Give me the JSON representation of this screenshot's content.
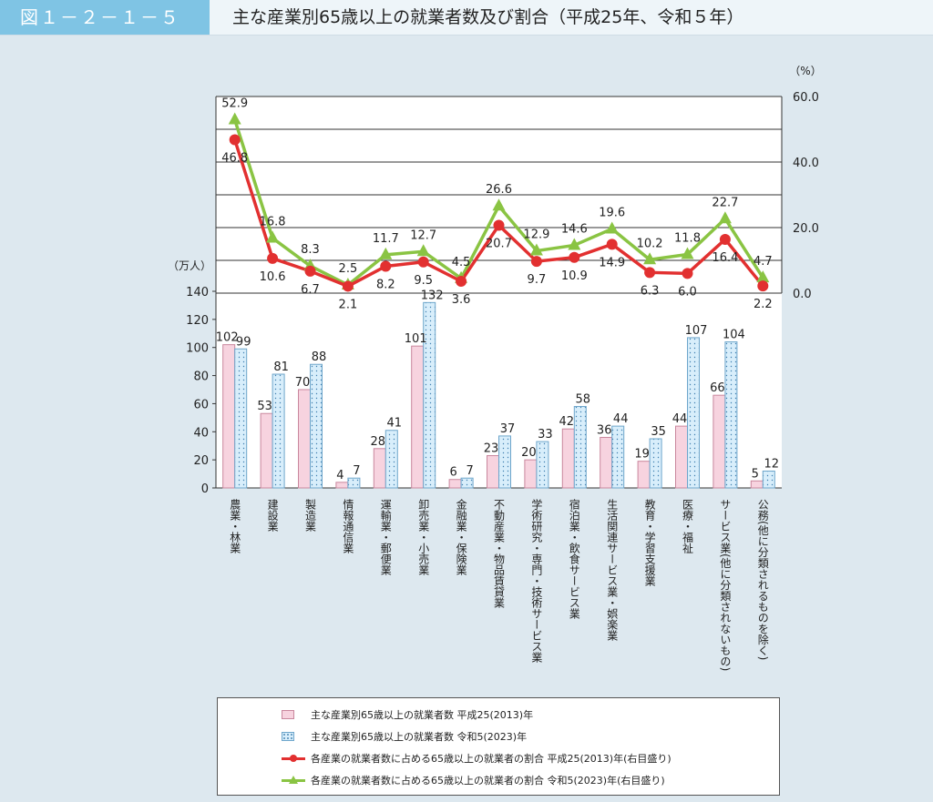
{
  "header": {
    "figure_number": "図１－２－１－５",
    "title": "主な産業別65歳以上の就業者数及び割合（平成25年、令和５年）"
  },
  "colors": {
    "bar_2013": "#f7d3df",
    "bar_2013_border": "#c9879d",
    "bar_2023": "#d8eefb",
    "bar_2023_border": "#6ea6cb",
    "line_2013": "#e23030",
    "line_2023": "#8ac443"
  },
  "legend": {
    "items": [
      "主な産業別65歳以上の就業者数 平成25(2013)年",
      "主な産業別65歳以上の就業者数 令和5(2023)年",
      "各産業の就業者数に占める65歳以上の就業者の割合 平成25(2013)年(右目盛り)",
      "各産業の就業者数に占める65歳以上の就業者の割合 令和5(2023)年(右目盛り)"
    ]
  },
  "chart_data": {
    "type": "bar",
    "categories": [
      "農業・林業",
      "建設業",
      "製造業",
      "情報通信業",
      "運輸業・郵便業",
      "卸売業・小売業",
      "金融業・保険業",
      "不動産業・物品賃貸業",
      "学術研究・専門・技術サービス業",
      "宿泊業・飲食サービス業",
      "生活関連サービス業・娯楽業",
      "教育・学習支援業",
      "医療・福祉",
      "サービス業(他に分類されないもの)",
      "公務(他に分類されるものを除く)"
    ],
    "series": [
      {
        "name": "主な産業別65歳以上の就業者数 平成25(2013)年",
        "kind": "bar",
        "axis": "left",
        "values": [
          102,
          53,
          70,
          4,
          28,
          101,
          6,
          23,
          20,
          42,
          36,
          19,
          44,
          66,
          5
        ]
      },
      {
        "name": "主な産業別65歳以上の就業者数 令和5(2023)年",
        "kind": "bar",
        "axis": "left",
        "values": [
          99,
          81,
          88,
          7,
          41,
          132,
          7,
          37,
          33,
          58,
          44,
          35,
          107,
          104,
          12
        ]
      },
      {
        "name": "各産業の就業者数に占める65歳以上の就業者の割合 平成25(2013)年(右目盛り)",
        "kind": "line",
        "axis": "right",
        "values": [
          46.8,
          10.6,
          6.7,
          2.1,
          8.2,
          9.5,
          3.6,
          20.7,
          9.7,
          10.9,
          14.9,
          6.3,
          6.0,
          16.4,
          2.2
        ]
      },
      {
        "name": "各産業の就業者数に占める65歳以上の就業者の割合 令和5(2023)年(右目盛り)",
        "kind": "line",
        "axis": "right",
        "values": [
          52.9,
          16.8,
          8.3,
          2.5,
          11.7,
          12.7,
          4.5,
          26.6,
          12.9,
          14.6,
          19.6,
          10.2,
          11.8,
          22.7,
          4.7
        ]
      }
    ],
    "left_axis": {
      "unit": "（万人）",
      "ylim": [
        0,
        140
      ],
      "ticks": [
        0,
        20,
        40,
        60,
        80,
        100,
        120,
        140
      ]
    },
    "right_axis": {
      "unit": "（%）",
      "ylim": [
        0,
        60
      ],
      "ticks": [
        "0.0",
        "20.0",
        "40.0",
        "60.0"
      ]
    },
    "line_2013_labels": [
      "46.8",
      "10.6",
      "6.7",
      "2.1",
      "8.2",
      "9.5",
      "3.6",
      "20.7",
      "9.7",
      "10.9",
      "14.9",
      "6.3",
      "6.0",
      "16.4",
      "2.2"
    ],
    "line_2023_labels": [
      "52.9",
      "16.8",
      "8.3",
      "2.5",
      "11.7",
      "12.7",
      "4.5",
      "26.6",
      "12.9",
      "14.6",
      "19.6",
      "10.2",
      "11.8",
      "22.7",
      "4.7"
    ],
    "grid": true,
    "legend_position": "bottom"
  }
}
